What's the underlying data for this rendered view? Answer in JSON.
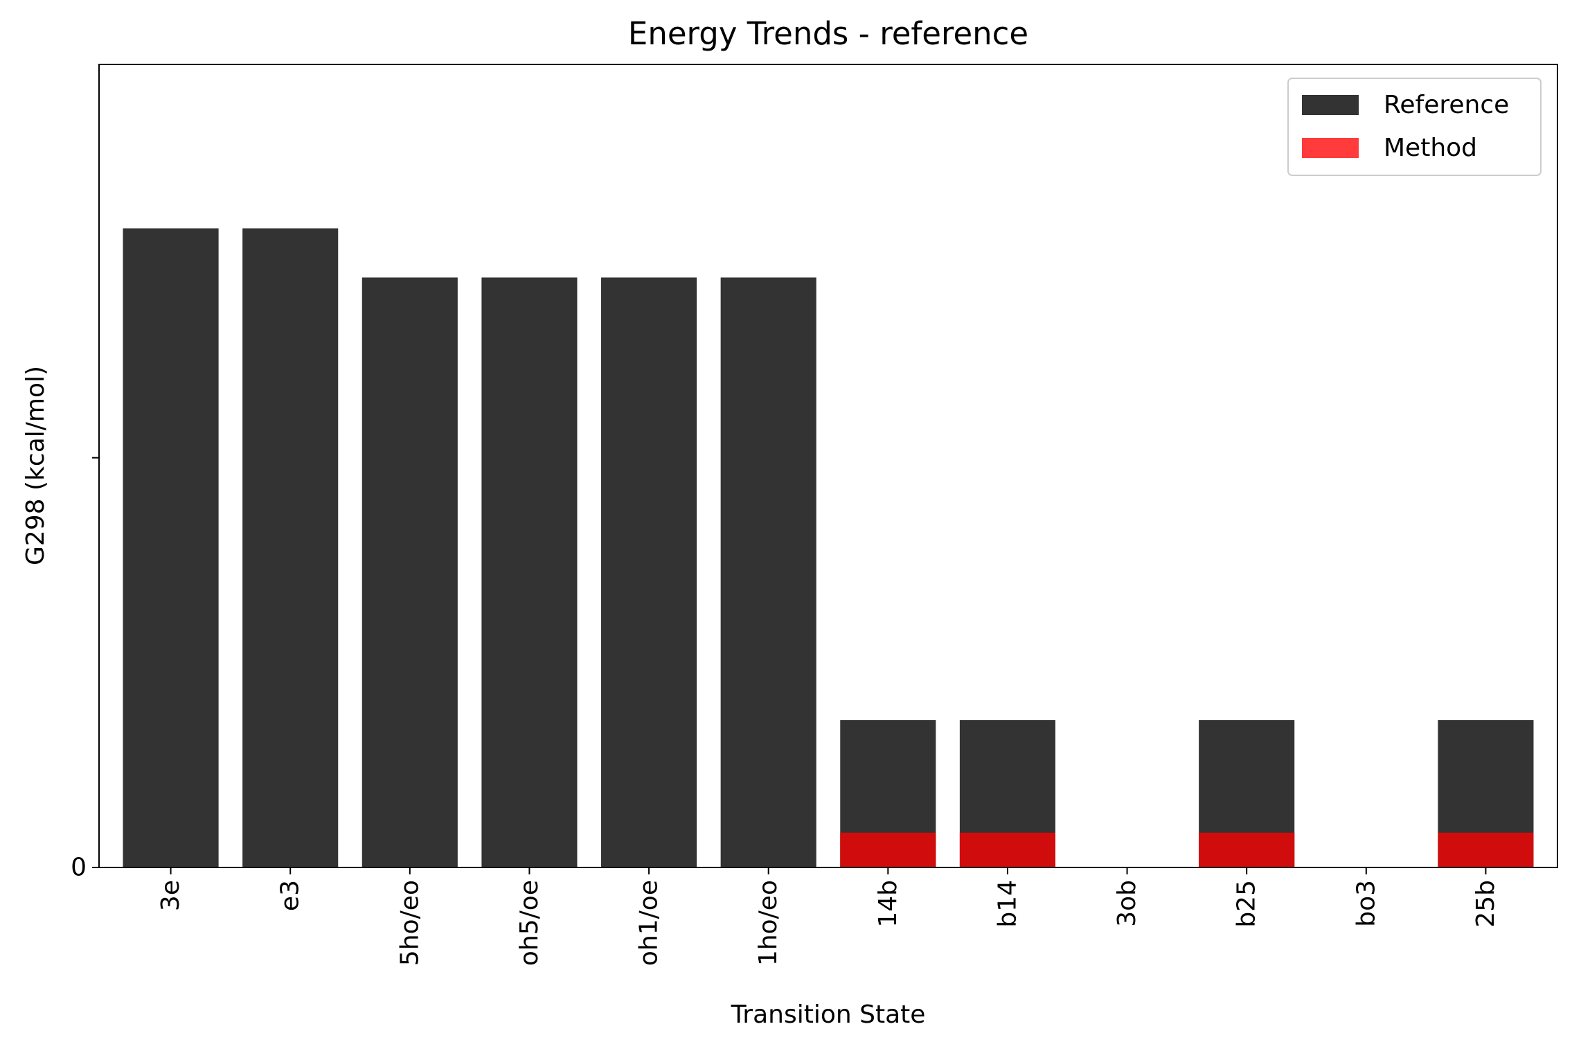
{
  "chart_data": {
    "type": "bar",
    "title": "Energy Trends - reference",
    "xlabel": "Transition State",
    "ylabel": "G298 (kcal/mol)",
    "categories": [
      "3e",
      "e3",
      "5ho/eo",
      "oh5/oe",
      "oh1/oe",
      "1ho/eo",
      "14b",
      "b14",
      "3ob",
      "b25",
      "bo3",
      "25b"
    ],
    "series": [
      {
        "name": "Reference",
        "color": "#333333",
        "values": [
          1.56,
          1.56,
          1.44,
          1.44,
          1.44,
          1.44,
          0.36,
          0.36,
          0,
          0.36,
          0,
          0.36
        ]
      },
      {
        "name": "Method",
        "color": "#ff3b3b",
        "values": [
          0,
          0,
          0,
          0,
          0,
          0,
          0.085,
          0.085,
          0,
          0.085,
          0,
          0.085
        ]
      }
    ],
    "ylim": [
      0,
      1.96
    ],
    "yticks": [
      {
        "value": 0,
        "label": "0"
      },
      {
        "value": 1,
        "label": ""
      }
    ],
    "legend": "top-right",
    "grid": false,
    "overlap_color": "#d10c0c"
  }
}
